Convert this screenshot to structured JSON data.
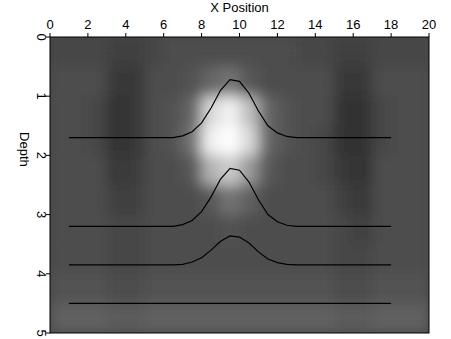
{
  "chart_data": {
    "type": "line",
    "x_label": "X Position",
    "y_label": "Depth",
    "xlim": [
      0,
      20
    ],
    "ylim": [
      0,
      5
    ],
    "xticks": [
      0,
      2,
      4,
      6,
      8,
      10,
      12,
      14,
      16,
      18,
      20
    ],
    "yticks": [
      0,
      1,
      2,
      3,
      4,
      5
    ],
    "zlim": [
      0,
      1
    ],
    "cells": [
      [
        0.28,
        0.28,
        0.28,
        0.25,
        0.25,
        0.28,
        0.3,
        0.3,
        0.3,
        0.3,
        0.3,
        0.3,
        0.3,
        0.28,
        0.28,
        0.25,
        0.25,
        0.28,
        0.28,
        0.28
      ],
      [
        0.3,
        0.3,
        0.3,
        0.22,
        0.22,
        0.3,
        0.3,
        0.32,
        0.4,
        0.45,
        0.35,
        0.3,
        0.3,
        0.3,
        0.3,
        0.22,
        0.22,
        0.3,
        0.3,
        0.3
      ],
      [
        0.3,
        0.3,
        0.28,
        0.2,
        0.22,
        0.3,
        0.32,
        0.4,
        0.85,
        0.95,
        0.75,
        0.4,
        0.32,
        0.3,
        0.3,
        0.2,
        0.2,
        0.28,
        0.3,
        0.3
      ],
      [
        0.3,
        0.3,
        0.28,
        0.2,
        0.22,
        0.3,
        0.32,
        0.45,
        0.95,
        1.0,
        0.85,
        0.4,
        0.32,
        0.3,
        0.28,
        0.2,
        0.2,
        0.28,
        0.3,
        0.3
      ],
      [
        0.3,
        0.3,
        0.3,
        0.22,
        0.24,
        0.3,
        0.3,
        0.35,
        0.7,
        0.8,
        0.6,
        0.35,
        0.3,
        0.3,
        0.28,
        0.22,
        0.2,
        0.3,
        0.3,
        0.3
      ],
      [
        0.3,
        0.3,
        0.3,
        0.25,
        0.25,
        0.3,
        0.3,
        0.3,
        0.35,
        0.45,
        0.38,
        0.3,
        0.3,
        0.3,
        0.3,
        0.25,
        0.22,
        0.3,
        0.3,
        0.3
      ],
      [
        0.3,
        0.3,
        0.3,
        0.28,
        0.28,
        0.3,
        0.3,
        0.3,
        0.3,
        0.32,
        0.3,
        0.3,
        0.3,
        0.3,
        0.3,
        0.28,
        0.25,
        0.3,
        0.3,
        0.3
      ],
      [
        0.3,
        0.3,
        0.3,
        0.28,
        0.28,
        0.3,
        0.3,
        0.3,
        0.3,
        0.3,
        0.3,
        0.3,
        0.3,
        0.3,
        0.3,
        0.28,
        0.28,
        0.3,
        0.3,
        0.3
      ],
      [
        0.32,
        0.32,
        0.32,
        0.3,
        0.3,
        0.32,
        0.32,
        0.32,
        0.32,
        0.32,
        0.32,
        0.32,
        0.32,
        0.32,
        0.32,
        0.3,
        0.3,
        0.32,
        0.32,
        0.32
      ],
      [
        0.38,
        0.38,
        0.38,
        0.36,
        0.36,
        0.38,
        0.38,
        0.38,
        0.38,
        0.38,
        0.38,
        0.38,
        0.38,
        0.38,
        0.38,
        0.36,
        0.36,
        0.38,
        0.38,
        0.38
      ]
    ],
    "series": [
      {
        "color": "#000000",
        "x": [
          1,
          6.5,
          7,
          7.5,
          8,
          8.5,
          9,
          9.5,
          10,
          10.5,
          11,
          11.5,
          12,
          12.5,
          13,
          18
        ],
        "values": [
          1.7,
          1.7,
          1.67,
          1.6,
          1.45,
          1.2,
          0.9,
          0.72,
          0.75,
          0.95,
          1.25,
          1.5,
          1.62,
          1.68,
          1.7,
          1.7
        ]
      },
      {
        "color": "#000000",
        "x": [
          1,
          6.5,
          7,
          7.5,
          8,
          8.5,
          9,
          9.5,
          10,
          10.5,
          11,
          11.5,
          12,
          12.5,
          13,
          18
        ],
        "values": [
          3.2,
          3.2,
          3.17,
          3.1,
          2.95,
          2.7,
          2.4,
          2.22,
          2.25,
          2.45,
          2.75,
          3.0,
          3.12,
          3.18,
          3.2,
          3.2
        ]
      },
      {
        "color": "#000000",
        "x": [
          1,
          6.5,
          7,
          7.5,
          8,
          8.5,
          9,
          9.5,
          10,
          10.5,
          11,
          11.5,
          12,
          12.5,
          13,
          18
        ],
        "values": [
          3.85,
          3.85,
          3.84,
          3.8,
          3.73,
          3.6,
          3.45,
          3.36,
          3.38,
          3.48,
          3.63,
          3.75,
          3.81,
          3.84,
          3.85,
          3.85
        ]
      },
      {
        "color": "#000000",
        "x": [
          1,
          18
        ],
        "values": [
          4.5,
          4.5
        ]
      }
    ]
  }
}
